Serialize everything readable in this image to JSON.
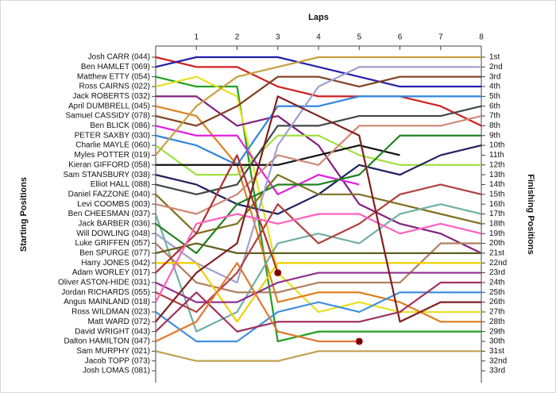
{
  "chart_data": {
    "type": "line",
    "x_label": "Laps",
    "y_label": "Starting Positions",
    "y2_label": "Finishing Positions",
    "x": [
      0,
      1,
      2,
      3,
      4,
      5,
      6,
      7,
      8
    ],
    "xlim": [
      0,
      8
    ],
    "xticks": [
      1,
      2,
      3,
      4,
      5,
      6,
      7,
      8
    ],
    "ylim": [
      1,
      33
    ],
    "finishing_positions": [
      "1st",
      "2nd",
      "3rd",
      "4th",
      "5th",
      "6th",
      "7th",
      "8th",
      "9th",
      "10th",
      "11th",
      "12th",
      "13th",
      "14th",
      "15th",
      "16th",
      "17th",
      "18th",
      "19th",
      "20th",
      "21st",
      "22nd",
      "23rd",
      "24th",
      "25th",
      "26th",
      "27th",
      "28th",
      "29th",
      "30th",
      "31st",
      "32nd",
      "33rd"
    ],
    "series": [
      {
        "name": "Josh CARR (044)",
        "color": "#d02020",
        "values": [
          1,
          2,
          2,
          4,
          5,
          5,
          5,
          6,
          8
        ]
      },
      {
        "name": "Ben HAMLET (069)",
        "color": "#2020a8",
        "values": [
          2,
          1,
          1,
          1,
          2,
          3,
          4,
          4,
          4
        ]
      },
      {
        "name": "Matthew ETTY (054)",
        "color": "#20a020",
        "values": [
          3,
          4,
          4,
          30,
          29,
          29,
          29,
          29,
          29
        ]
      },
      {
        "name": "Ross CAIRNS (022)",
        "color": "#e8e020",
        "values": [
          4,
          3,
          5,
          23,
          27,
          26,
          27,
          27,
          27
        ]
      },
      {
        "name": "Jack ROBERTS (032)",
        "color": "#802080",
        "values": [
          5,
          5,
          8,
          7,
          10,
          16,
          18,
          19,
          21
        ]
      },
      {
        "name": "April DUMBRELL (045)",
        "color": "#e08020",
        "values": [
          6,
          7,
          12,
          26,
          25,
          25,
          26,
          28,
          28
        ]
      },
      {
        "name": "Samuel CASSIDY (078)",
        "color": "#804020",
        "values": [
          7,
          8,
          6,
          3,
          3,
          4,
          3,
          3,
          3
        ]
      },
      {
        "name": "Ben BLICK (086)",
        "color": "#e020e0",
        "values": [
          8,
          9,
          9,
          15,
          13,
          14,
          null,
          null,
          null
        ]
      },
      {
        "name": "PETER SAXBY (030)",
        "color": "#3088e0",
        "values": [
          9,
          10,
          12,
          6,
          6,
          5,
          5,
          5,
          5
        ]
      },
      {
        "name": "Charlie MAYLE (060)",
        "color": "#a0e040",
        "values": [
          10,
          13,
          13,
          9,
          9,
          11,
          12,
          12,
          12
        ]
      },
      {
        "name": "Myles POTTER (019)",
        "color": "#c8a040",
        "values": [
          11,
          6,
          3,
          2,
          1,
          1,
          1,
          1,
          1
        ]
      },
      {
        "name": "Kieran GIFFORD (058)",
        "color": "#101010",
        "values": [
          12,
          12,
          12,
          12,
          11,
          10,
          11,
          null,
          null
        ]
      },
      {
        "name": "Sam STANSBURY (038)",
        "color": "#202060",
        "values": [
          13,
          14,
          16,
          17,
          15,
          12,
          13,
          11,
          10
        ]
      },
      {
        "name": "Elliot HALL (088)",
        "color": "#404848",
        "values": [
          14,
          15,
          14,
          8,
          8,
          7,
          7,
          7,
          6
        ]
      },
      {
        "name": "Daniel FAZZONE (040)",
        "color": "#807020",
        "values": [
          15,
          19,
          18,
          13,
          15,
          15,
          16,
          17,
          18
        ]
      },
      {
        "name": "Levi COOMBS (003)",
        "color": "#d08878",
        "values": [
          16,
          17,
          15,
          11,
          12,
          8,
          8,
          8,
          7
        ]
      },
      {
        "name": "Ben CHEESMAN (037)",
        "color": "#70b0a0",
        "values": [
          17,
          29,
          27,
          20,
          19,
          20,
          17,
          16,
          17
        ]
      },
      {
        "name": "Jack BARBER (036)",
        "color": "#208020",
        "values": [
          18,
          21,
          16,
          14,
          14,
          13,
          9,
          9,
          9
        ]
      },
      {
        "name": "Will DOWLING (048)",
        "color": "#a0a0d0",
        "values": [
          19,
          22,
          24,
          10,
          4,
          2,
          2,
          2,
          2
        ]
      },
      {
        "name": "Luke GRIFFEN (057)",
        "color": "#b08060",
        "values": [
          20,
          24,
          25,
          25,
          24,
          24,
          24,
          20,
          20
        ]
      },
      {
        "name": "Ben SPURGE (077)",
        "color": "#606020",
        "values": [
          21,
          20,
          21,
          21,
          21,
          21,
          21,
          21,
          21
        ]
      },
      {
        "name": "Harry JONES (042)",
        "color": "#f0d000",
        "values": [
          22,
          22,
          28,
          22,
          22,
          22,
          22,
          22,
          22
        ]
      },
      {
        "name": "Adam WORLEY (017)",
        "color": "#b03030",
        "values": [
          23,
          19,
          11,
          23,
          null,
          null,
          null,
          null,
          null
        ],
        "retired": true
      },
      {
        "name": "Oliver ASTON-HIDE (031)",
        "color": "#903090",
        "values": [
          24,
          26,
          26,
          24,
          23,
          23,
          23,
          23,
          23
        ]
      },
      {
        "name": "Jordan RICHARDS (055)",
        "color": "#b04040",
        "values": [
          25,
          27,
          23,
          16,
          20,
          18,
          15,
          14,
          15
        ]
      },
      {
        "name": "Angus MAINLAND (018)",
        "color": "#ff60c0",
        "values": [
          26,
          18,
          17,
          18,
          17,
          17,
          19,
          18,
          19
        ]
      },
      {
        "name": "Ross WILDMAN (023)",
        "color": "#4090e0",
        "values": [
          27,
          30,
          30,
          27,
          26,
          27,
          25,
          25,
          25
        ]
      },
      {
        "name": "Matt WARD (072)",
        "color": "#802020",
        "values": [
          28,
          23,
          20,
          5,
          7,
          9,
          28,
          26,
          26
        ]
      },
      {
        "name": "David WRIGHT (043)",
        "color": "#a03060",
        "values": [
          29,
          25,
          29,
          28,
          28,
          28,
          27,
          24,
          24
        ]
      },
      {
        "name": "Dalton HAMILTON (047)",
        "color": "#e07830",
        "values": [
          30,
          28,
          22,
          29,
          30,
          30,
          null,
          null,
          null
        ],
        "retired": true
      },
      {
        "name": "Sam MURPHY (021)",
        "color": "#c0a050",
        "values": [
          31,
          32,
          32,
          32,
          31,
          31,
          31,
          31,
          31
        ]
      },
      {
        "name": "Jacob TOPP (073)",
        "color": "#888888",
        "values": [
          null,
          null,
          null,
          null,
          null,
          null,
          null,
          null,
          null
        ]
      },
      {
        "name": "Josh LOMAS (081)",
        "color": "#888888",
        "values": [
          null,
          null,
          null,
          null,
          null,
          null,
          null,
          null,
          null
        ]
      }
    ]
  }
}
